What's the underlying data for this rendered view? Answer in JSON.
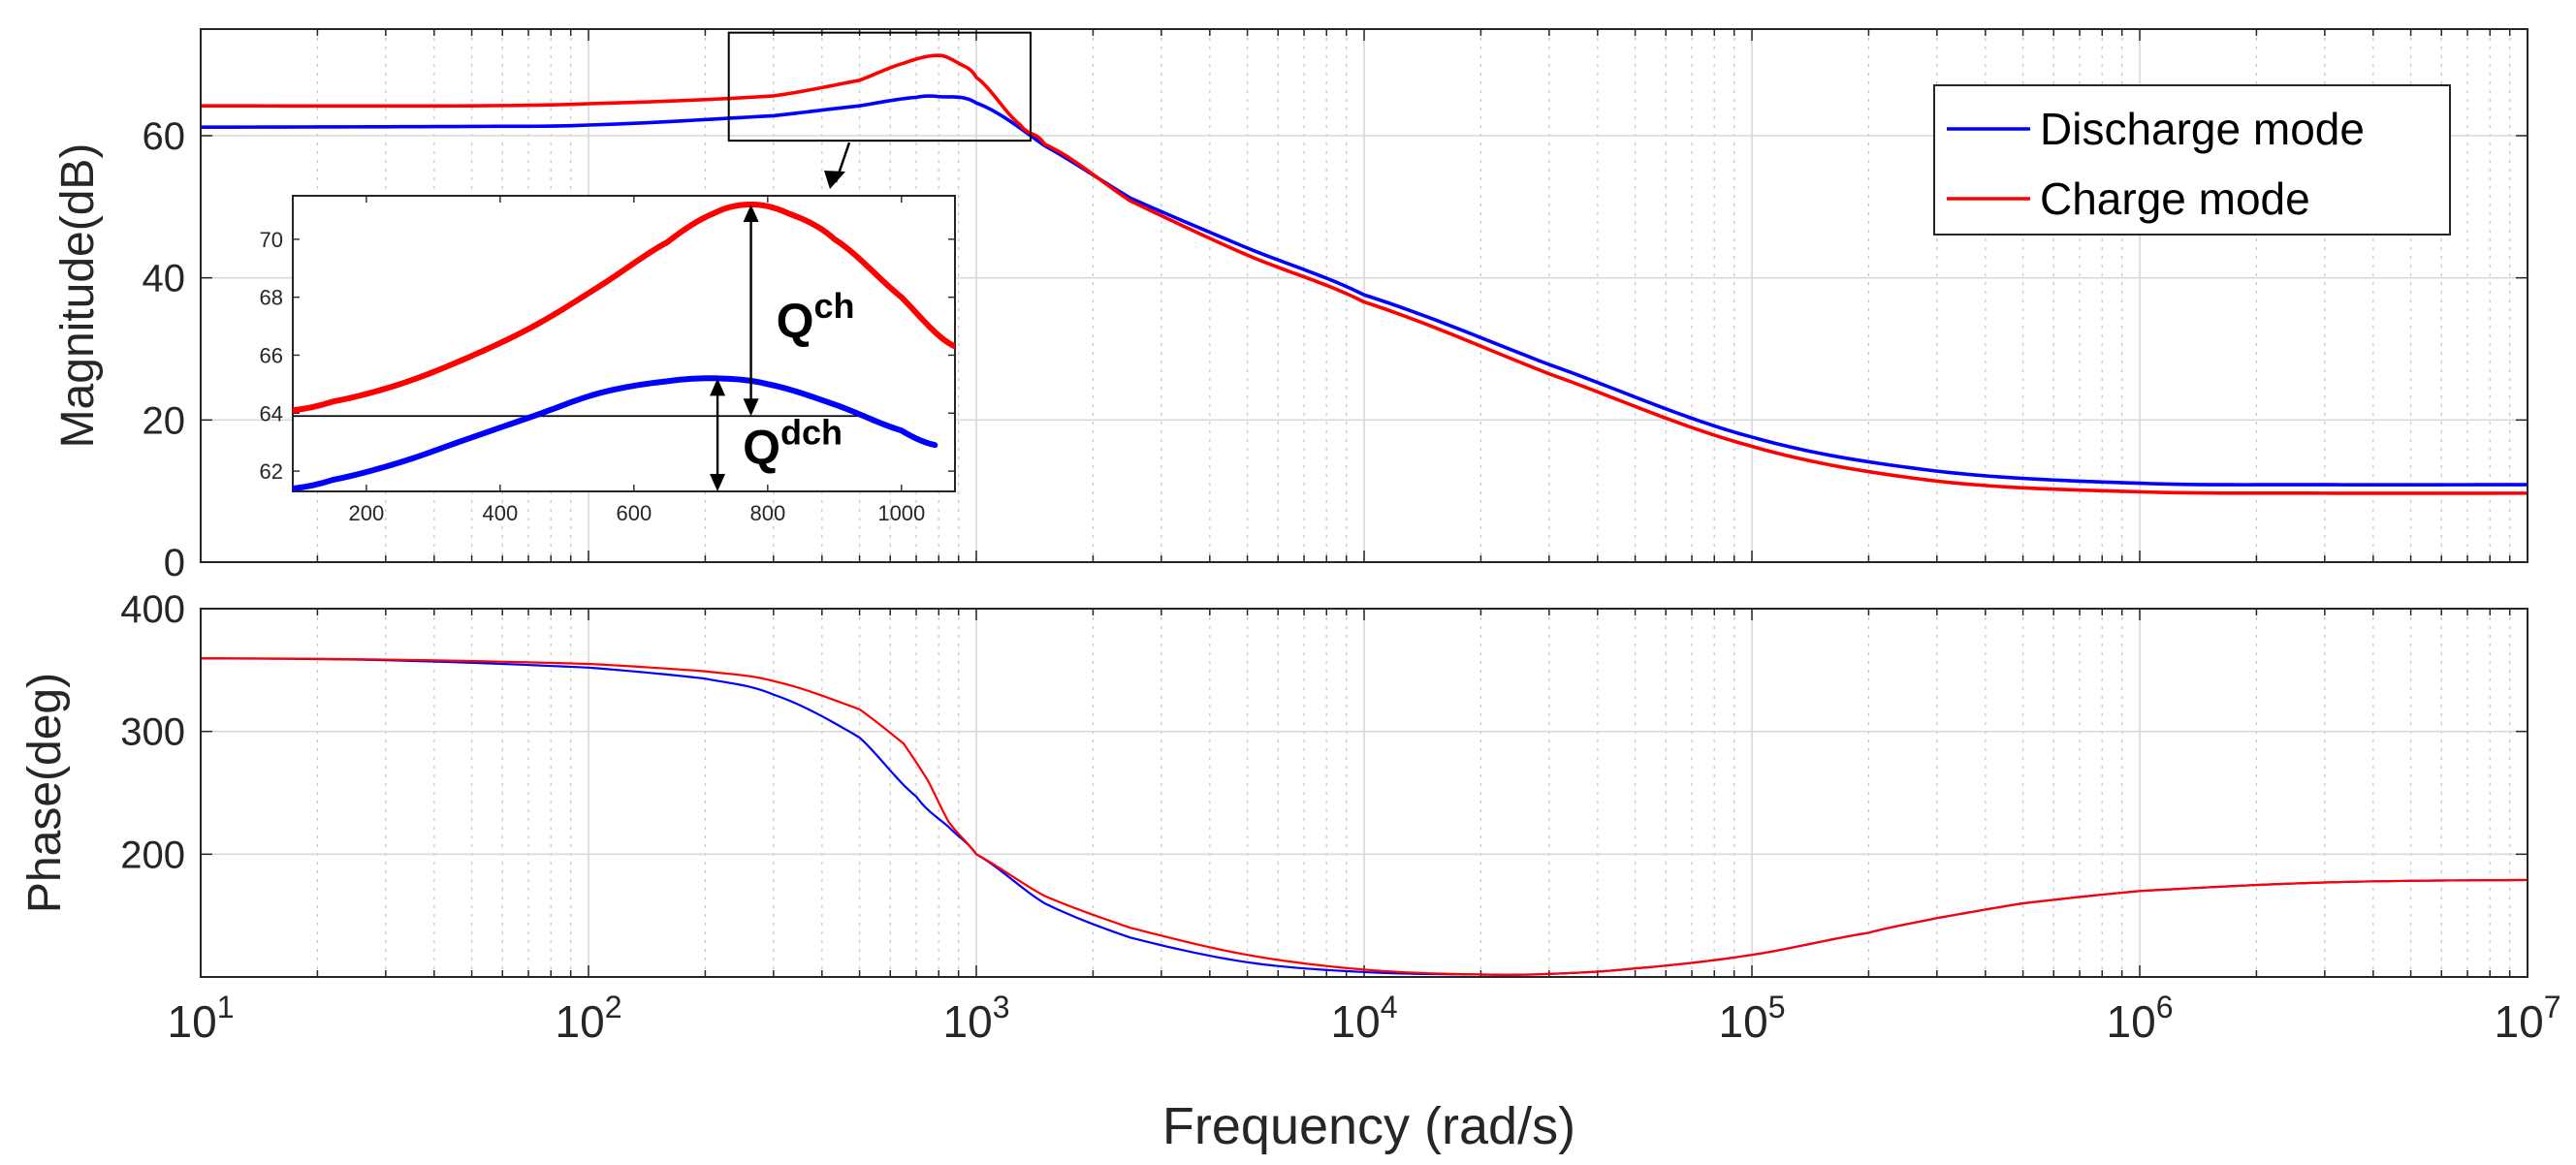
{
  "colors": {
    "discharge": "#0000ff",
    "charge": "#ff0000",
    "grid": "#dcdcdc",
    "axis": "#262626"
  },
  "chart_data": [
    {
      "id": "magnitude",
      "type": "line",
      "xscale": "log",
      "xlim": [
        10,
        10000000
      ],
      "ylim": [
        0,
        75
      ],
      "yticks": [
        0,
        20,
        40,
        60
      ],
      "ylabel": "Magnitude(dB)",
      "grid": true,
      "legend": {
        "placement": "top-right",
        "entries": [
          "Discharge mode",
          "Charge mode"
        ]
      },
      "series": [
        {
          "name": "Discharge mode",
          "x": [
            10,
            50,
            100,
            300,
            500,
            700,
            800,
            1000,
            1500,
            2500,
            5000,
            10000,
            30000,
            100000,
            300000,
            1000000,
            3000000,
            10000000
          ],
          "y": [
            61.2,
            61.3,
            61.5,
            62.8,
            64.2,
            65.4,
            65.5,
            64.6,
            58.6,
            51.2,
            44.2,
            37.6,
            27.8,
            17.6,
            12.8,
            11.1,
            10.9,
            10.9
          ]
        },
        {
          "name": "Charge mode",
          "x": [
            10,
            50,
            100,
            300,
            500,
            650,
            800,
            900,
            1000,
            1300,
            1500,
            2500,
            5000,
            10000,
            30000,
            100000,
            300000,
            1000000,
            3000000,
            10000000
          ],
          "y": [
            64.2,
            64.2,
            64.5,
            65.6,
            67.8,
            70.2,
            71.3,
            70.2,
            68.2,
            61.5,
            58.8,
            50.8,
            43.2,
            36.6,
            26.5,
            16.3,
            11.4,
            9.9,
            9.7,
            9.7
          ]
        }
      ]
    },
    {
      "id": "magnitude-inset",
      "type": "line",
      "xscale": "linear",
      "xlim": [
        90,
        1080
      ],
      "ylim": [
        61.3,
        71.5
      ],
      "xticks": [
        200,
        400,
        600,
        800,
        1000
      ],
      "yticks": [
        62,
        64,
        66,
        68,
        70
      ],
      "reference_y": 63.9,
      "annotations": [
        {
          "base": "Q",
          "sup": "ch",
          "x": 775,
          "y_from": 63.9,
          "y_to": 71.2
        },
        {
          "base": "Q",
          "sup": "dch",
          "x": 725,
          "y_from": 61.3,
          "y_to": 65.2
        }
      ],
      "series": [
        {
          "name": "Discharge mode",
          "x": [
            90,
            150,
            250,
            350,
            450,
            550,
            650,
            725,
            800,
            900,
            1000,
            1050
          ],
          "y": [
            61.4,
            61.7,
            62.3,
            63.1,
            63.9,
            64.7,
            65.1,
            65.2,
            65.0,
            64.3,
            63.4,
            62.9
          ]
        },
        {
          "name": "Charge mode",
          "x": [
            90,
            150,
            250,
            350,
            450,
            550,
            650,
            720,
            775,
            830,
            900,
            1000,
            1080
          ],
          "y": [
            64.1,
            64.4,
            65.0,
            65.9,
            67.0,
            68.4,
            69.9,
            70.9,
            71.2,
            70.9,
            70.0,
            68.0,
            66.3
          ]
        }
      ]
    },
    {
      "id": "phase",
      "type": "line",
      "xscale": "log",
      "xlim": [
        10,
        10000000
      ],
      "ylim": [
        100,
        400
      ],
      "yticks": [
        200,
        300,
        400
      ],
      "ylabel": "Phase(deg)",
      "xlabel": "Frequency (rad/s)",
      "xtick_base": "10",
      "xtick_exponents": [
        "1",
        "2",
        "3",
        "4",
        "5",
        "6",
        "7"
      ],
      "grid": true,
      "series": [
        {
          "name": "Discharge mode",
          "x": [
            10,
            30,
            100,
            200,
            300,
            500,
            700,
            850,
            1000,
            1500,
            2500,
            5000,
            10000,
            20000,
            30000,
            50000,
            100000,
            200000,
            300000,
            500000,
            1000000,
            3000000,
            10000000
          ],
          "y": [
            359.5,
            358,
            352,
            343,
            330,
            295,
            247,
            222,
            200,
            160,
            132,
            112,
            104,
            102,
            102.5,
            107,
            118,
            136,
            148,
            160,
            170,
            177,
            179
          ]
        },
        {
          "name": "Charge mode",
          "x": [
            10,
            30,
            100,
            200,
            300,
            500,
            650,
            750,
            850,
            1000,
            1500,
            2500,
            5000,
            10000,
            20000,
            30000,
            50000,
            100000,
            200000,
            300000,
            500000,
            1000000,
            3000000,
            10000000
          ],
          "y": [
            359.6,
            358.5,
            355,
            349,
            341,
            318,
            290,
            260,
            226,
            200,
            166,
            140,
            118,
            106,
            102,
            102.5,
            107,
            118,
            136,
            148,
            160,
            170,
            177,
            179
          ]
        }
      ]
    }
  ]
}
